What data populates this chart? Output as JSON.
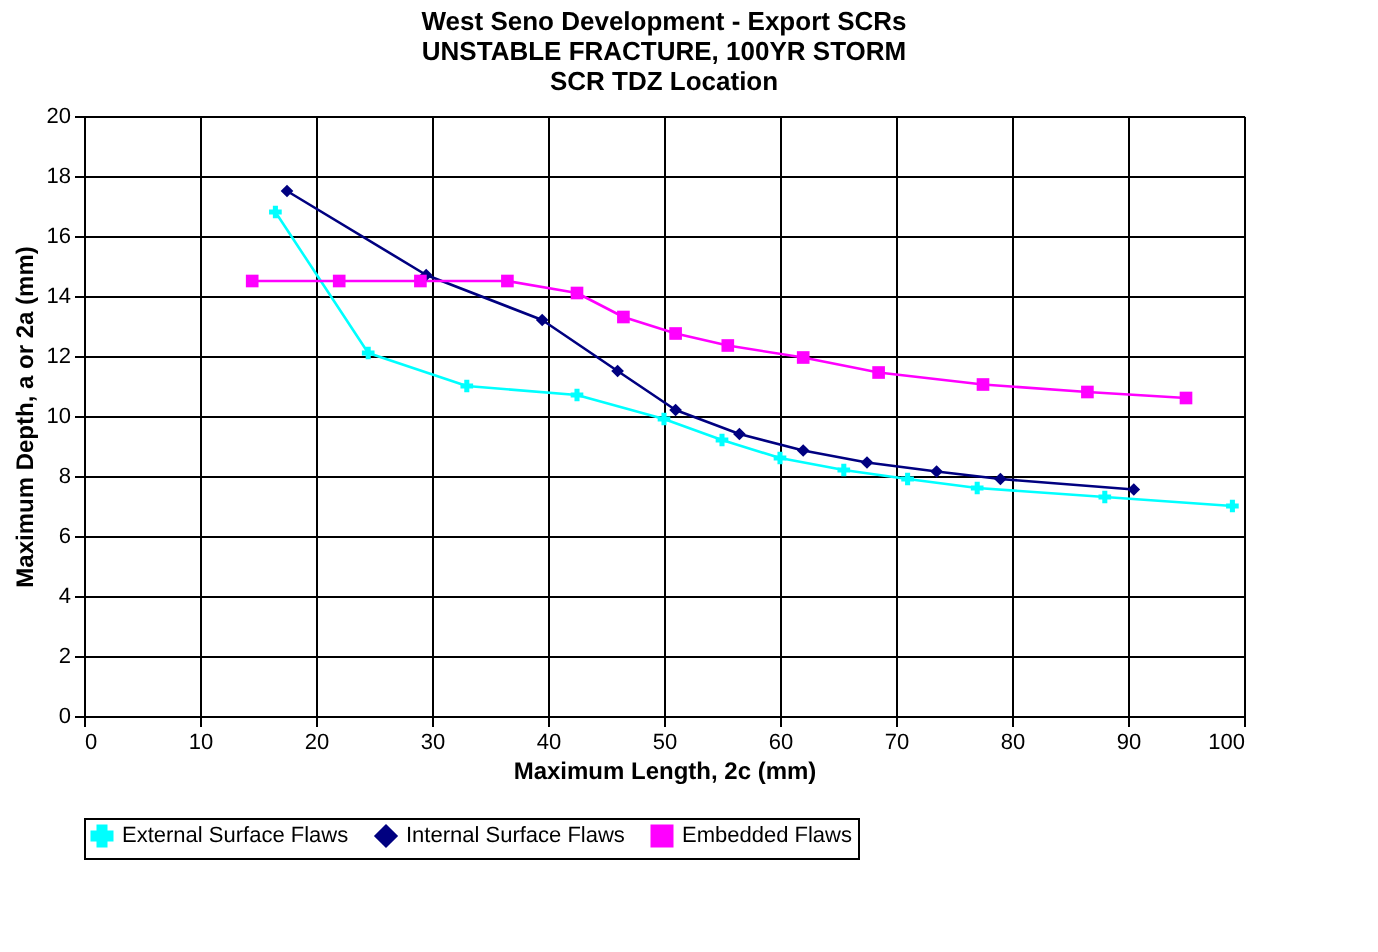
{
  "chart_data": {
    "type": "line",
    "title": [
      "West Seno Development - Export SCRs",
      "UNSTABLE FRACTURE, 100YR STORM",
      "SCR TDZ Location"
    ],
    "xlabel": "Maximum Length, 2c (mm)",
    "ylabel": "Maximum Depth, a or 2a (mm)",
    "xlim": [
      0,
      100
    ],
    "xticks": [
      0,
      10,
      20,
      30,
      40,
      50,
      60,
      70,
      80,
      90,
      100
    ],
    "ylim": [
      0,
      20
    ],
    "yticks": [
      0,
      2,
      4,
      6,
      8,
      10,
      12,
      14,
      16,
      18,
      20
    ],
    "grid": true,
    "legend": "bottom",
    "line_style": "solid",
    "series": [
      {
        "name": "External Surface Flaws",
        "color": "#00ffff",
        "marker": "cross",
        "x": [
          16.5,
          24.5,
          33,
          42.5,
          50,
          55,
          60,
          65.5,
          71,
          77,
          88,
          99
        ],
        "values": [
          16.8,
          12.1,
          11.0,
          10.7,
          9.9,
          9.2,
          8.6,
          8.2,
          7.9,
          7.6,
          7.3,
          7.0
        ]
      },
      {
        "name": "Internal Surface Flaws",
        "color": "#000080",
        "marker": "diamond",
        "x": [
          17.5,
          29.5,
          39.5,
          46,
          51,
          56.5,
          62,
          67.5,
          73.5,
          79,
          90.5
        ],
        "values": [
          17.5,
          14.7,
          13.2,
          11.5,
          10.2,
          9.4,
          8.85,
          8.45,
          8.15,
          7.9,
          7.55
        ]
      },
      {
        "name": "Embedded Flaws",
        "color": "#ff00ff",
        "marker": "square",
        "x": [
          14.5,
          22,
          29,
          36.5,
          42.5,
          46.5,
          51,
          55.5,
          62,
          68.5,
          77.5,
          86.5,
          95
        ],
        "values": [
          14.5,
          14.5,
          14.5,
          14.5,
          14.1,
          13.3,
          12.75,
          12.35,
          11.95,
          11.45,
          11.05,
          10.8,
          10.6
        ]
      }
    ]
  }
}
